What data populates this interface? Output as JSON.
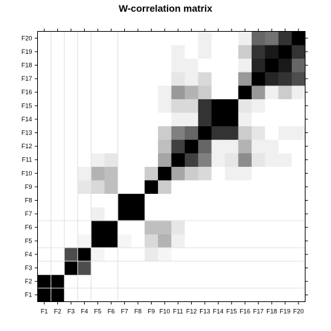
{
  "chart_data": {
    "type": "heatmap",
    "title": "W-correlation matrix",
    "labels": [
      "F1",
      "F2",
      "F3",
      "F4",
      "F5",
      "F6",
      "F7",
      "F8",
      "F9",
      "F10",
      "F11",
      "F12",
      "F13",
      "F14",
      "F15",
      "F16",
      "F17",
      "F18",
      "F19",
      "F20"
    ],
    "scale": "0 = white, 1 = black (absolute w-correlation)",
    "matrix": [
      [
        1.0,
        1.0,
        0,
        0,
        0,
        0,
        0,
        0,
        0,
        0,
        0,
        0,
        0,
        0,
        0,
        0,
        0,
        0,
        0,
        0
      ],
      [
        1.0,
        1.0,
        0,
        0,
        0,
        0,
        0,
        0,
        0,
        0,
        0,
        0,
        0,
        0,
        0,
        0,
        0,
        0,
        0,
        0
      ],
      [
        0,
        0,
        1.0,
        0.7,
        0,
        0,
        0,
        0,
        0,
        0,
        0,
        0,
        0,
        0,
        0,
        0,
        0,
        0,
        0,
        0
      ],
      [
        0,
        0,
        0.7,
        1.0,
        0.04,
        0,
        0,
        0,
        0.08,
        0.04,
        0,
        0,
        0,
        0,
        0,
        0,
        0,
        0,
        0,
        0
      ],
      [
        0,
        0,
        0,
        0.04,
        1.0,
        1.0,
        0.04,
        0,
        0.15,
        0.3,
        0.06,
        0,
        0,
        0,
        0,
        0,
        0,
        0,
        0,
        0
      ],
      [
        0,
        0,
        0,
        0,
        1.0,
        1.0,
        0,
        0,
        0.25,
        0.25,
        0.1,
        0,
        0,
        0,
        0,
        0,
        0,
        0,
        0,
        0
      ],
      [
        0,
        0,
        0,
        0,
        0.06,
        0,
        1.0,
        1.0,
        0,
        0,
        0,
        0,
        0,
        0,
        0,
        0,
        0,
        0,
        0,
        0
      ],
      [
        0,
        0,
        0,
        0,
        0,
        0,
        1.0,
        1.0,
        0,
        0,
        0,
        0,
        0,
        0,
        0,
        0,
        0,
        0,
        0,
        0
      ],
      [
        0,
        0,
        0,
        0.1,
        0.15,
        0.25,
        0,
        0,
        1.0,
        0.2,
        0,
        0,
        0,
        0,
        0,
        0,
        0,
        0,
        0,
        0
      ],
      [
        0,
        0,
        0,
        0.06,
        0.3,
        0.25,
        0,
        0,
        0.2,
        1.0,
        0.35,
        0.2,
        0.15,
        0,
        0.06,
        0.06,
        0,
        0,
        0,
        0
      ],
      [
        0,
        0,
        0,
        0,
        0.06,
        0.1,
        0,
        0,
        0,
        0.35,
        1.0,
        0.75,
        0.5,
        0.06,
        0.1,
        0.45,
        0.1,
        0.06,
        0.06,
        0
      ],
      [
        0,
        0,
        0,
        0,
        0,
        0,
        0,
        0,
        0,
        0.25,
        0.75,
        1.0,
        0.6,
        0.06,
        0.06,
        0.3,
        0.06,
        0.06,
        0,
        0
      ],
      [
        0,
        0,
        0,
        0,
        0,
        0,
        0,
        0,
        0,
        0.2,
        0.5,
        0.6,
        1.0,
        0.8,
        0.8,
        0.2,
        0.1,
        0,
        0.06,
        0.06
      ],
      [
        0,
        0,
        0,
        0,
        0,
        0,
        0,
        0,
        0,
        0,
        0.06,
        0.06,
        0.8,
        1.0,
        1.0,
        0.06,
        0,
        0,
        0,
        0
      ],
      [
        0,
        0,
        0,
        0,
        0,
        0,
        0,
        0,
        0,
        0.06,
        0.15,
        0.15,
        0.8,
        1.0,
        1.0,
        0.1,
        0.06,
        0,
        0,
        0
      ],
      [
        0,
        0,
        0,
        0,
        0,
        0,
        0,
        0,
        0,
        0.06,
        0.4,
        0.3,
        0.2,
        0,
        0,
        1.0,
        0.4,
        0.06,
        0.2,
        0.06
      ],
      [
        0,
        0,
        0,
        0,
        0,
        0,
        0,
        0,
        0,
        0,
        0.1,
        0.06,
        0.15,
        0,
        0,
        0.4,
        1.0,
        0.85,
        0.8,
        0.7
      ],
      [
        0,
        0,
        0,
        0,
        0,
        0,
        0,
        0,
        0,
        0,
        0.06,
        0.06,
        0,
        0,
        0,
        0.06,
        0.85,
        1.0,
        0.9,
        0.6
      ],
      [
        0,
        0,
        0,
        0,
        0,
        0,
        0,
        0,
        0,
        0,
        0.06,
        0,
        0.06,
        0,
        0,
        0.2,
        0.8,
        0.9,
        1.0,
        0.8
      ],
      [
        0,
        0,
        0,
        0,
        0,
        0,
        0,
        0,
        0,
        0,
        0,
        0,
        0.06,
        0,
        0,
        0.06,
        0.6,
        0.55,
        0.8,
        1.0
      ]
    ]
  }
}
